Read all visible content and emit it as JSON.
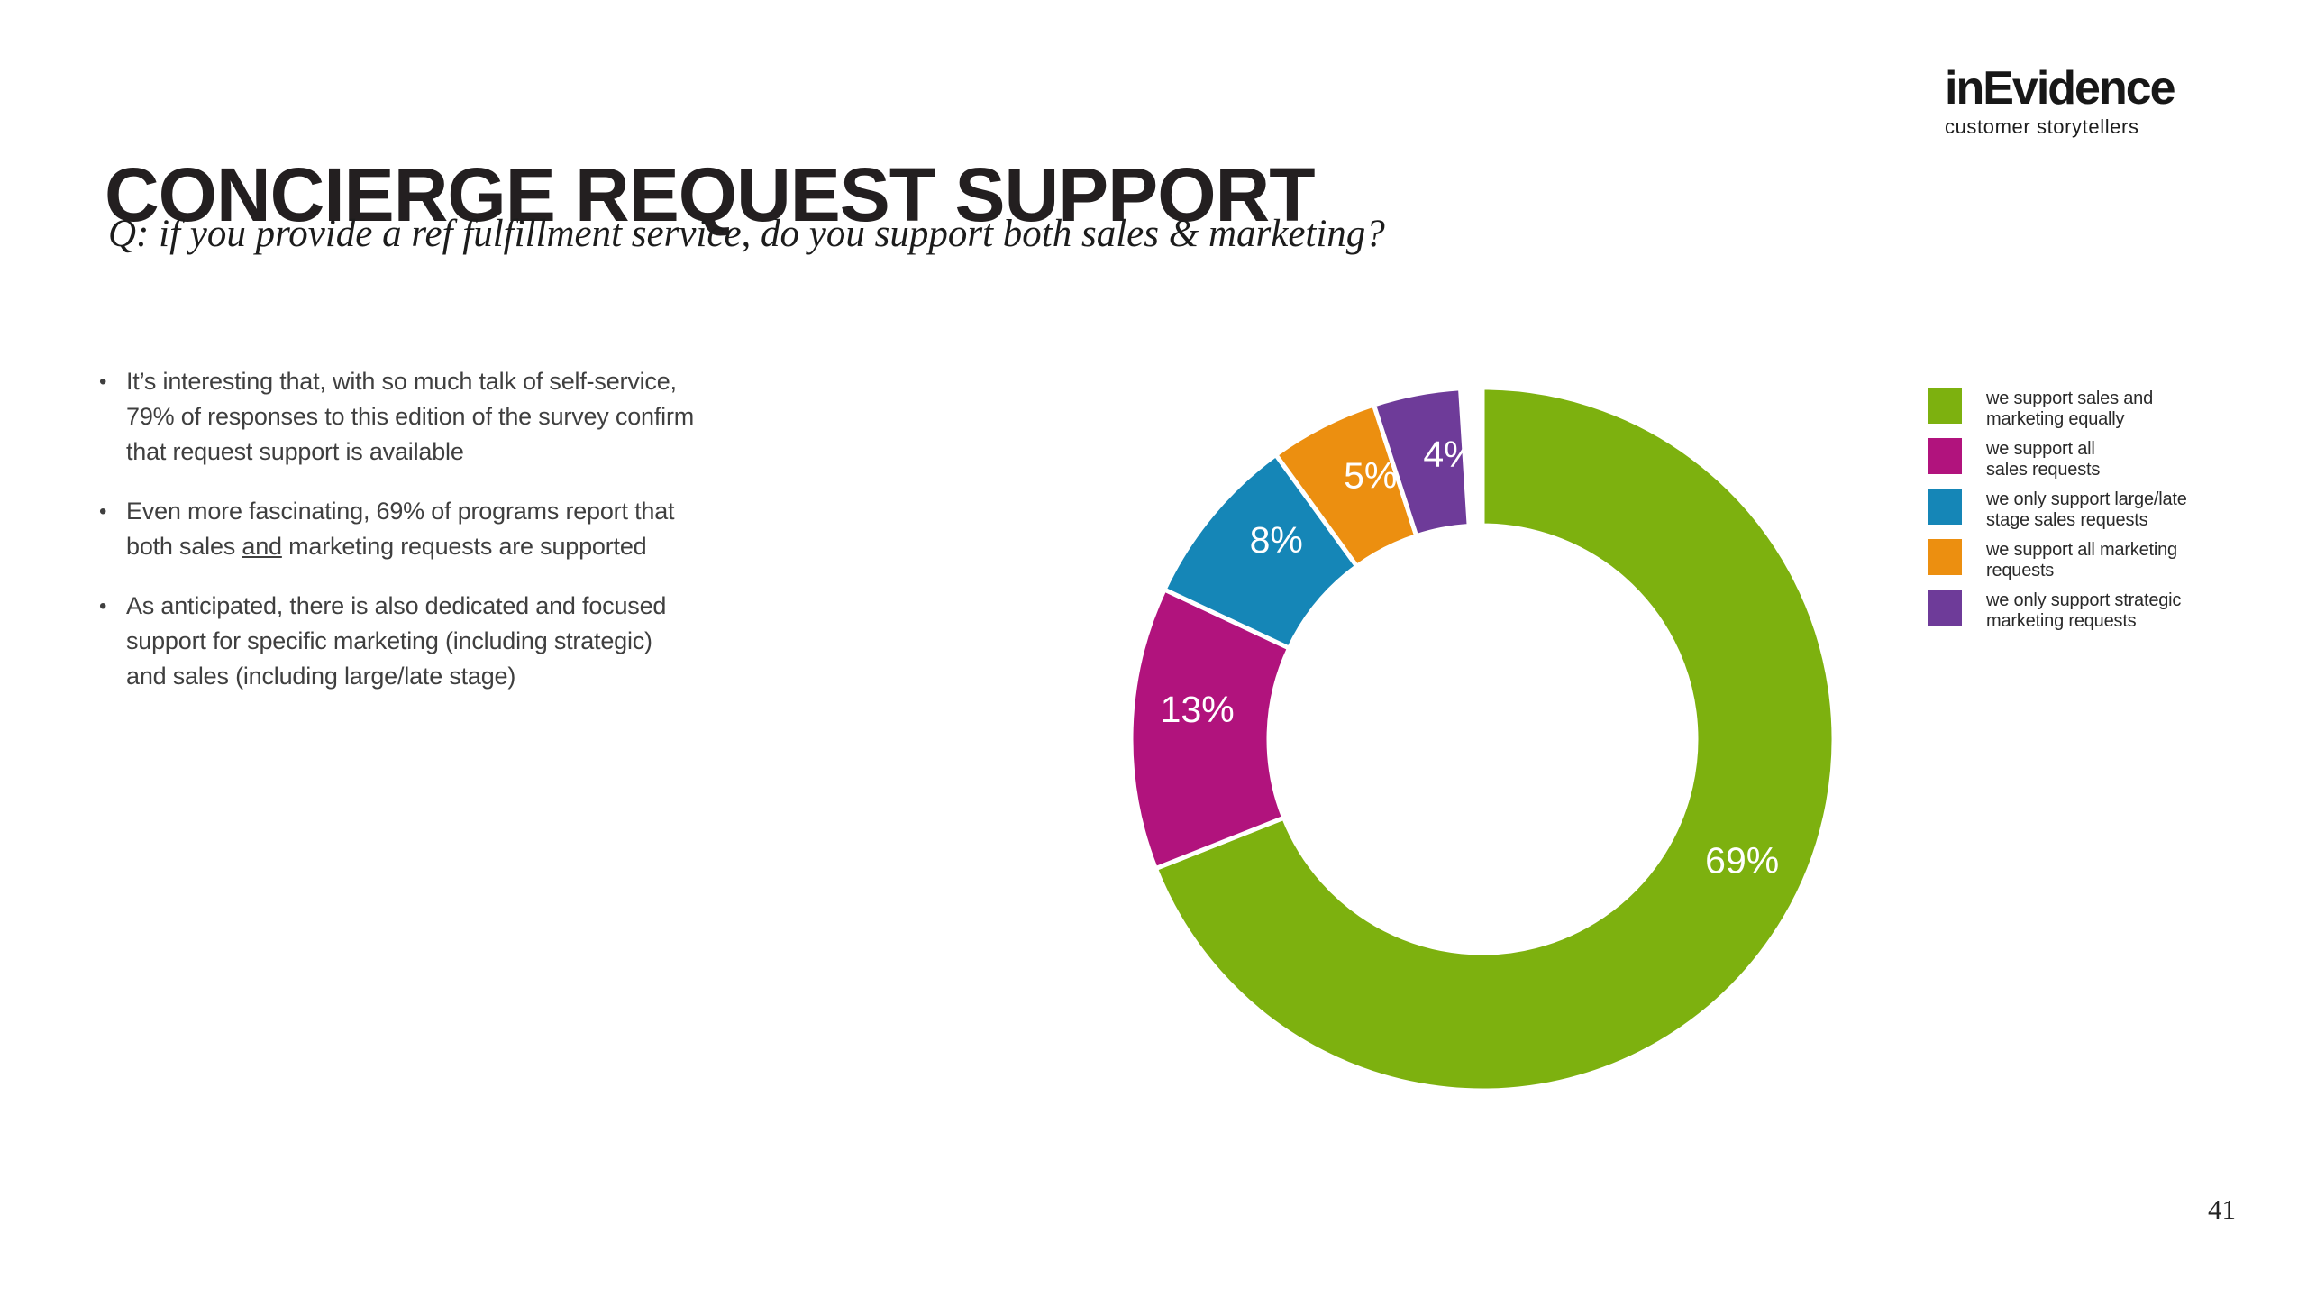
{
  "header": {
    "title": "CONCIERGE REQUEST SUPPORT",
    "question": "Q: if you provide a ref fulfillment service, do you support both sales & marketing?"
  },
  "logo": {
    "wordmark": "inEvidence",
    "tagline": "customer storytellers"
  },
  "bullets": [
    {
      "segments": [
        {
          "t": "It’s interesting that, with so much talk of self-service,\n79% of responses to this edition of the survey confirm\nthat request support is available"
        }
      ]
    },
    {
      "segments": [
        {
          "t": "Even more fascinating, 69% of programs report that\nboth sales "
        },
        {
          "t": "and",
          "u": true
        },
        {
          "t": " marketing requests are supported"
        }
      ]
    },
    {
      "segments": [
        {
          "t": "As anticipated, there is also dedicated and focused\nsupport for specific marketing (including strategic)\nand sales (including large/late stage)"
        }
      ]
    }
  ],
  "chart_data": {
    "type": "pie",
    "subtype": "donut",
    "title": "",
    "value_suffix": "%",
    "start_angle_deg": 0,
    "direction": "clockwise",
    "inner_radius_ratio": 0.61,
    "legend_position": "right",
    "data_labels": "inside-white",
    "slices": [
      {
        "label": "we support sales and\nmarketing equally",
        "value": 69,
        "color": "#7db10f",
        "label_angle_deg": 115
      },
      {
        "label": "we support all\nsales requests",
        "value": 13,
        "color": "#b1137d",
        "label_angle_deg": 276
      },
      {
        "label": "we only support large/late\nstage sales requests",
        "value": 8,
        "color": "#1586b7",
        "label_angle_deg": 314
      },
      {
        "label": "we support all marketing\nrequests",
        "value": 5,
        "color": "#ec8f10",
        "label_angle_deg": 337
      },
      {
        "label": "we only support strategic\nmarketing requests",
        "value": 4,
        "color": "#6e3b99",
        "label_angle_deg": 353.5
      }
    ]
  },
  "footer": {
    "page_number": "41"
  }
}
